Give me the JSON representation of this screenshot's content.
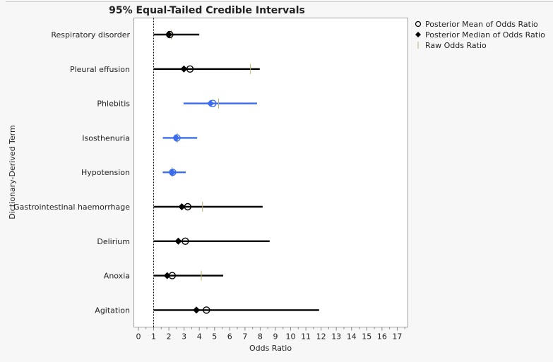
{
  "chart_data": {
    "type": "interval",
    "title": "95% Equal-Tailed Credible Intervals",
    "xlabel": "Odds Ratio",
    "ylabel": "Dictionary-Derived Term",
    "xlim": [
      -0.3,
      17.7
    ],
    "xticks": [
      0,
      1,
      2,
      3,
      4,
      5,
      6,
      7,
      8,
      9,
      10,
      11,
      12,
      13,
      14,
      15,
      16,
      17
    ],
    "reference_line": 1,
    "grid": false,
    "legend_position": "right",
    "legend": [
      {
        "label": "Posterior Mean of Odds Ratio",
        "marker": "open-circle"
      },
      {
        "label": "Posterior Median of Odds Ratio",
        "marker": "filled-diamond"
      },
      {
        "label": "Raw Odds Ratio",
        "marker": "tick"
      }
    ],
    "colors": {
      "default": "#000000",
      "highlight": "#3a6cf0",
      "raw": "#b8b070"
    },
    "rows": [
      {
        "term": "Respiratory disorder",
        "lower": 1.0,
        "upper": 4.0,
        "median": 1.99,
        "mean": 2.06,
        "raw": 2.17,
        "highlight": false
      },
      {
        "term": "Pleural effusion",
        "lower": 1.0,
        "upper": 7.97,
        "median": 2.99,
        "mean": 3.39,
        "raw": 7.36,
        "highlight": false
      },
      {
        "term": "Phlebitis",
        "lower": 2.96,
        "upper": 7.79,
        "median": 4.73,
        "mean": 4.89,
        "raw": 5.27,
        "highlight": true
      },
      {
        "term": "Isosthenuria",
        "lower": 1.6,
        "upper": 3.86,
        "median": 2.47,
        "mean": 2.53,
        "raw": 2.55,
        "highlight": true
      },
      {
        "term": "Hypotension",
        "lower": 1.6,
        "upper": 3.11,
        "median": 2.22,
        "mean": 2.25,
        "raw": 2.22,
        "highlight": true
      },
      {
        "term": "Gastrointestinal haemorrhage",
        "lower": 1.0,
        "upper": 8.16,
        "median": 2.85,
        "mean": 3.24,
        "raw": 4.21,
        "highlight": false
      },
      {
        "term": "Delirium",
        "lower": 1.0,
        "upper": 8.62,
        "median": 2.62,
        "mean": 3.08,
        "raw": null,
        "highlight": false
      },
      {
        "term": "Anoxia",
        "lower": 1.0,
        "upper": 5.57,
        "median": 1.89,
        "mean": 2.22,
        "raw": 4.13,
        "highlight": false
      },
      {
        "term": "Agitation",
        "lower": 1.0,
        "upper": 11.87,
        "median": 3.81,
        "mean": 4.47,
        "raw": null,
        "highlight": false
      }
    ]
  }
}
